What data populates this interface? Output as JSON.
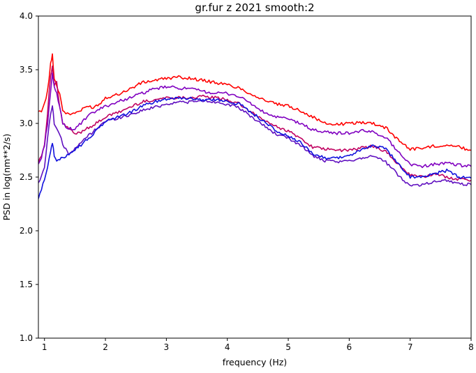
{
  "chart_data": {
    "type": "line",
    "title": "gr.fur z 2021 smooth:2",
    "xlabel": "frequency (Hz)",
    "ylabel": "PSD in log(nm**2/s)",
    "xlim": [
      0.9,
      8.0
    ],
    "ylim": [
      1.0,
      4.0
    ],
    "xticks": [
      1,
      2,
      3,
      4,
      5,
      6,
      7,
      8
    ],
    "yticks": [
      1.0,
      1.5,
      2.0,
      2.5,
      3.0,
      3.5,
      4.0
    ],
    "xtick_labels": [
      "1",
      "2",
      "3",
      "4",
      "5",
      "6",
      "7",
      "8"
    ],
    "ytick_labels": [
      "1.0",
      "1.5",
      "2.0",
      "2.5",
      "3.0",
      "3.5",
      "4.0"
    ],
    "grid": false,
    "series": [
      {
        "color": "#ff0000",
        "x": [
          0.9,
          0.95,
          1.0,
          1.05,
          1.1,
          1.13,
          1.16,
          1.2,
          1.25,
          1.3,
          1.4,
          1.5,
          1.6,
          1.7,
          1.8,
          1.9,
          2.0,
          2.2,
          2.4,
          2.6,
          2.8,
          3.0,
          3.2,
          3.4,
          3.6,
          3.8,
          4.0,
          4.2,
          4.4,
          4.6,
          4.8,
          5.0,
          5.2,
          5.4,
          5.6,
          5.8,
          6.0,
          6.2,
          6.4,
          6.6,
          6.8,
          7.0,
          7.2,
          7.4,
          7.6,
          7.8,
          8.0
        ],
        "y": [
          3.1,
          3.12,
          3.18,
          3.3,
          3.55,
          3.64,
          3.42,
          3.35,
          3.28,
          3.12,
          3.08,
          3.1,
          3.12,
          3.16,
          3.15,
          3.18,
          3.24,
          3.27,
          3.32,
          3.38,
          3.4,
          3.42,
          3.43,
          3.42,
          3.4,
          3.38,
          3.36,
          3.33,
          3.27,
          3.22,
          3.18,
          3.16,
          3.12,
          3.06,
          3.0,
          2.99,
          3.0,
          3.01,
          3.0,
          2.96,
          2.85,
          2.76,
          2.77,
          2.79,
          2.8,
          2.78,
          2.75
        ]
      },
      {
        "color": "#c00060",
        "x": [
          0.9,
          0.95,
          1.0,
          1.05,
          1.1,
          1.13,
          1.16,
          1.2,
          1.25,
          1.3,
          1.4,
          1.5,
          1.6,
          1.7,
          1.8,
          1.9,
          2.0,
          2.2,
          2.4,
          2.6,
          2.8,
          3.0,
          3.2,
          3.4,
          3.6,
          3.8,
          4.0,
          4.2,
          4.4,
          4.6,
          4.8,
          5.0,
          5.2,
          5.4,
          5.6,
          5.8,
          6.0,
          6.2,
          6.4,
          6.6,
          6.8,
          7.0,
          7.2,
          7.4,
          7.6,
          7.8,
          8.0
        ],
        "y": [
          2.65,
          2.7,
          2.8,
          3.1,
          3.45,
          3.52,
          3.35,
          3.38,
          3.15,
          3.0,
          2.95,
          2.9,
          2.92,
          2.96,
          2.98,
          3.02,
          3.06,
          3.1,
          3.15,
          3.2,
          3.22,
          3.24,
          3.24,
          3.24,
          3.25,
          3.24,
          3.22,
          3.18,
          3.1,
          3.03,
          2.97,
          2.93,
          2.86,
          2.78,
          2.76,
          2.75,
          2.75,
          2.77,
          2.79,
          2.74,
          2.62,
          2.52,
          2.5,
          2.53,
          2.5,
          2.48,
          2.47
        ]
      },
      {
        "color": "#8000c0",
        "x": [
          0.9,
          0.95,
          1.0,
          1.05,
          1.1,
          1.13,
          1.16,
          1.2,
          1.25,
          1.3,
          1.4,
          1.5,
          1.6,
          1.7,
          1.8,
          1.9,
          2.0,
          2.2,
          2.4,
          2.6,
          2.8,
          3.0,
          3.2,
          3.4,
          3.6,
          3.8,
          4.0,
          4.2,
          4.4,
          4.6,
          4.8,
          5.0,
          5.2,
          5.4,
          5.6,
          5.8,
          6.0,
          6.2,
          6.4,
          6.6,
          6.8,
          7.0,
          7.2,
          7.4,
          7.6,
          7.8,
          8.0
        ],
        "y": [
          2.62,
          2.68,
          2.8,
          3.0,
          3.3,
          3.46,
          3.33,
          3.28,
          3.15,
          3.0,
          2.95,
          2.95,
          3.0,
          3.06,
          3.1,
          3.13,
          3.16,
          3.2,
          3.24,
          3.28,
          3.32,
          3.34,
          3.33,
          3.32,
          3.3,
          3.28,
          3.28,
          3.25,
          3.18,
          3.1,
          3.06,
          3.04,
          3.0,
          2.94,
          2.92,
          2.91,
          2.91,
          2.93,
          2.92,
          2.87,
          2.74,
          2.62,
          2.6,
          2.62,
          2.63,
          2.61,
          2.6
        ]
      },
      {
        "color": "#6010c0",
        "x": [
          0.9,
          0.95,
          1.0,
          1.05,
          1.1,
          1.13,
          1.16,
          1.2,
          1.25,
          1.3,
          1.4,
          1.5,
          1.6,
          1.7,
          1.8,
          1.9,
          2.0,
          2.2,
          2.4,
          2.6,
          2.8,
          3.0,
          3.2,
          3.4,
          3.6,
          3.8,
          4.0,
          4.2,
          4.4,
          4.6,
          4.8,
          5.0,
          5.2,
          5.4,
          5.6,
          5.8,
          6.0,
          6.2,
          6.4,
          6.6,
          6.8,
          7.0,
          7.2,
          7.4,
          7.6,
          7.8,
          8.0
        ],
        "y": [
          2.45,
          2.5,
          2.6,
          2.85,
          3.1,
          3.17,
          3.0,
          2.95,
          2.9,
          2.8,
          2.72,
          2.76,
          2.82,
          2.88,
          2.92,
          2.98,
          3.02,
          3.05,
          3.08,
          3.12,
          3.15,
          3.18,
          3.2,
          3.2,
          3.21,
          3.2,
          3.18,
          3.14,
          3.06,
          2.98,
          2.9,
          2.86,
          2.8,
          2.7,
          2.65,
          2.64,
          2.65,
          2.68,
          2.7,
          2.64,
          2.52,
          2.42,
          2.43,
          2.46,
          2.47,
          2.44,
          2.43
        ]
      },
      {
        "color": "#1010dd",
        "x": [
          0.9,
          0.95,
          1.0,
          1.05,
          1.1,
          1.13,
          1.16,
          1.2,
          1.25,
          1.3,
          1.4,
          1.5,
          1.6,
          1.7,
          1.8,
          1.9,
          2.0,
          2.2,
          2.4,
          2.6,
          2.8,
          3.0,
          3.2,
          3.4,
          3.6,
          3.8,
          4.0,
          4.2,
          4.4,
          4.6,
          4.8,
          5.0,
          5.2,
          5.4,
          5.6,
          5.8,
          6.0,
          6.2,
          6.4,
          6.6,
          6.8,
          7.0,
          7.2,
          7.4,
          7.6,
          7.8,
          8.0
        ],
        "y": [
          2.3,
          2.38,
          2.48,
          2.6,
          2.75,
          2.82,
          2.7,
          2.65,
          2.66,
          2.68,
          2.72,
          2.76,
          2.8,
          2.85,
          2.9,
          2.96,
          3.02,
          3.06,
          3.1,
          3.16,
          3.2,
          3.23,
          3.24,
          3.23,
          3.22,
          3.22,
          3.21,
          3.18,
          3.1,
          3.02,
          2.93,
          2.88,
          2.82,
          2.72,
          2.68,
          2.68,
          2.7,
          2.75,
          2.8,
          2.76,
          2.63,
          2.5,
          2.5,
          2.53,
          2.56,
          2.5,
          2.49
        ]
      }
    ]
  }
}
